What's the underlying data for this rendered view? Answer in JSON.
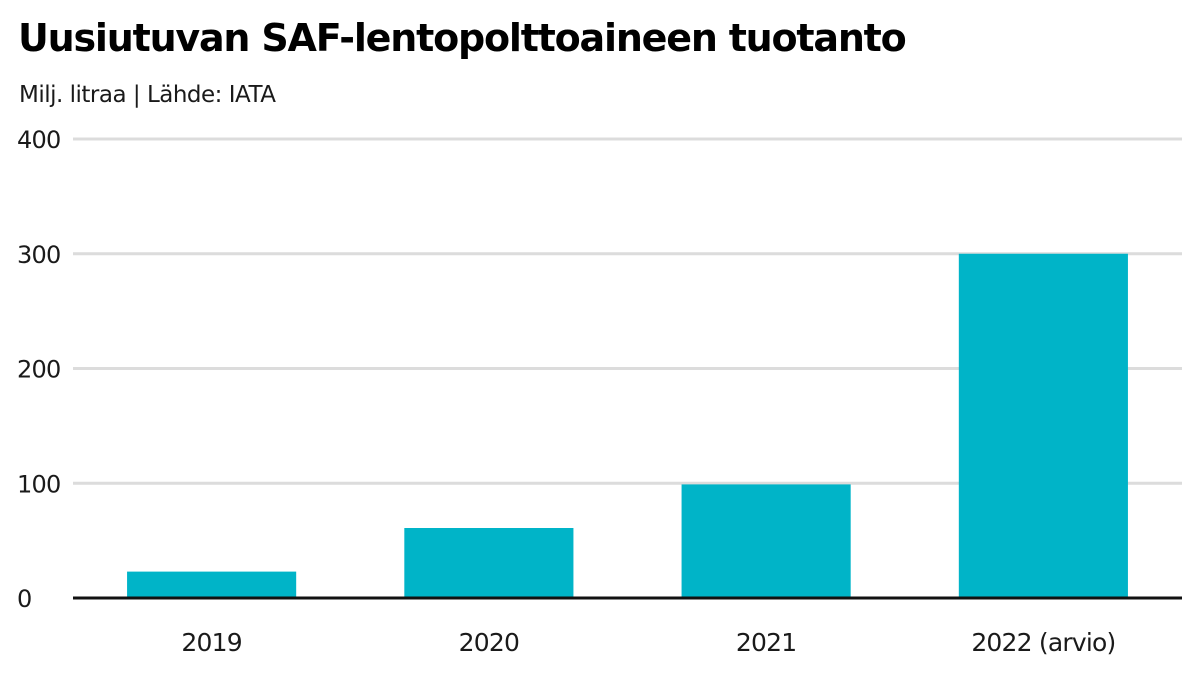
{
  "chart_data": {
    "type": "bar",
    "title": "Uusiutuvan SAF-lentopolttoaineen tuotanto",
    "subtitle": "Milj. litraa | Lähde: IATA",
    "xlabel": "",
    "ylabel": "",
    "categories": [
      "2019",
      "2020",
      "2021",
      "2022 (arvio)"
    ],
    "values": [
      23,
      61,
      99,
      300
    ],
    "ylim": [
      0,
      400
    ],
    "yticks": [
      0,
      100,
      200,
      300,
      400
    ],
    "grid": true,
    "legend": "none",
    "bar_color": "#00b4c8"
  }
}
